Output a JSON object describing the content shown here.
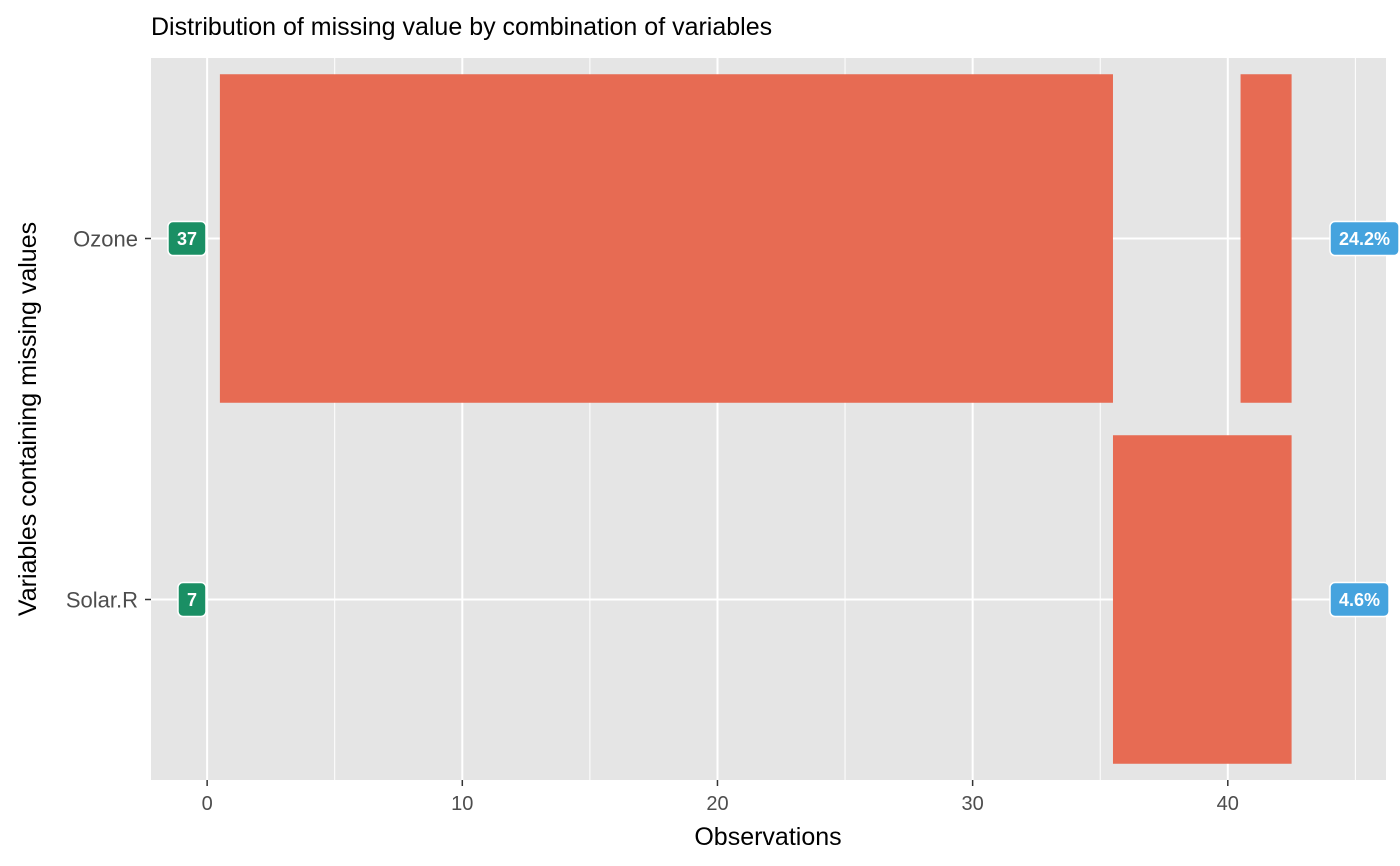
{
  "chart_data": {
    "type": "bar",
    "title": "Distribution of missing value by combination of variables",
    "xlabel": "Observations",
    "ylabel": "Variables containing missing values",
    "xlim": [
      -2.2,
      46.2
    ],
    "x_ticks": [
      0,
      10,
      20,
      30,
      40
    ],
    "categories": [
      "Ozone",
      "Solar.R"
    ],
    "segments": [
      {
        "category": "Ozone",
        "start": 0.5,
        "end": 35.5
      },
      {
        "category": "Ozone",
        "start": 40.5,
        "end": 42.5
      },
      {
        "category": "Solar.R",
        "start": 35.5,
        "end": 42.5
      }
    ],
    "count_labels": [
      {
        "category": "Ozone",
        "text": "37"
      },
      {
        "category": "Solar.R",
        "text": "7"
      }
    ],
    "percent_labels": [
      {
        "category": "Ozone",
        "text": "24.2%"
      },
      {
        "category": "Solar.R",
        "text": "4.6%"
      }
    ],
    "grid": true,
    "colors": {
      "bar": "#e76b53",
      "panel": "#e5e5e5",
      "grid": "#ffffff",
      "count_label": "#1a8f64",
      "percent_label": "#45a3de"
    }
  }
}
